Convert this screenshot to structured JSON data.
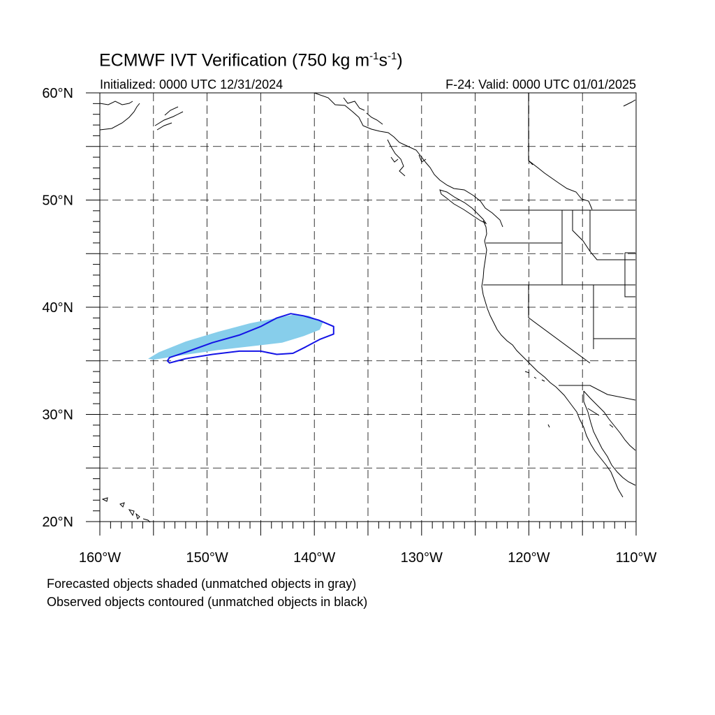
{
  "title": {
    "main": "ECMWF IVT Verification (750 kg m",
    "exp1": "-1",
    "mid": "s",
    "exp2": "-1",
    "end": ")"
  },
  "initialized": "Initialized: 0000 UTC 12/31/2024",
  "valid": "F-24: Valid: 0000 UTC 01/01/2025",
  "map": {
    "lon_range": [
      -160,
      -110
    ],
    "lat_range": [
      20,
      60
    ],
    "grid_spacing_deg": 5,
    "gridlines": "dashed",
    "lat_labels": [
      "20°N",
      "30°N",
      "40°N",
      "50°N",
      "60°N"
    ],
    "lon_labels": [
      "160°W",
      "150°W",
      "140°W",
      "130°W",
      "120°W",
      "110°W"
    ],
    "colors": {
      "forecast_shade": "#87ceeb",
      "observed_contour": "#1414e6",
      "coastline": "#000000"
    },
    "forecast_object": {
      "description_shown": "shaded",
      "lonlat": [
        [
          -155.5,
          35.2
        ],
        [
          -154.5,
          35.8
        ],
        [
          -152,
          36.8
        ],
        [
          -149,
          37.7
        ],
        [
          -146,
          38.5
        ],
        [
          -143.5,
          39.0
        ],
        [
          -142,
          39.3
        ],
        [
          -140.5,
          39.2
        ],
        [
          -139.2,
          38.6
        ],
        [
          -139.5,
          37.9
        ],
        [
          -141,
          37.3
        ],
        [
          -143,
          36.7
        ],
        [
          -145.5,
          36.4
        ],
        [
          -149,
          36.0
        ],
        [
          -152.5,
          35.5
        ],
        [
          -155,
          35.1
        ]
      ]
    },
    "observed_object": {
      "description_shown": "contoured",
      "lonlat": [
        [
          -153.5,
          35.3
        ],
        [
          -152,
          35.8
        ],
        [
          -149.5,
          36.7
        ],
        [
          -147,
          37.4
        ],
        [
          -145,
          38.2
        ],
        [
          -143.5,
          39.0
        ],
        [
          -142.2,
          39.4
        ],
        [
          -141,
          39.2
        ],
        [
          -139.6,
          38.8
        ],
        [
          -138.2,
          38.2
        ],
        [
          -138.2,
          37.5
        ],
        [
          -139.5,
          37.0
        ],
        [
          -140.8,
          36.3
        ],
        [
          -142,
          35.7
        ],
        [
          -143.5,
          35.6
        ],
        [
          -145,
          35.9
        ],
        [
          -147,
          35.9
        ],
        [
          -149.5,
          35.6
        ],
        [
          -152,
          35.2
        ],
        [
          -153.5,
          34.8
        ],
        [
          -153.7,
          35.0
        ]
      ]
    }
  },
  "notes": [
    "Forecasted objects shaded (unmatched objects in gray)",
    "Observed objects contoured (unmatched objects in black)"
  ]
}
